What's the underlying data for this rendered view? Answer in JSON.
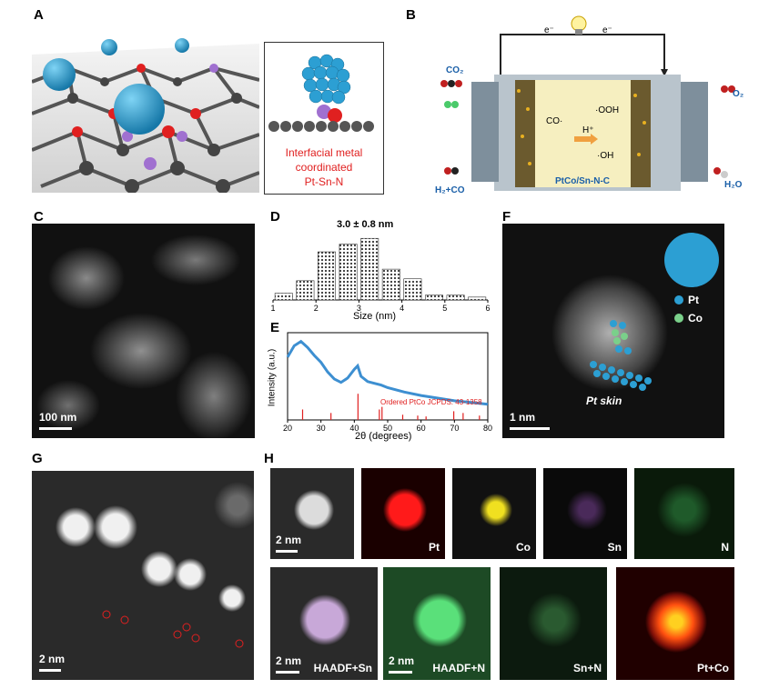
{
  "panels": {
    "A": {
      "label": "A",
      "inset_caption": [
        "Interfacial metal",
        "coordinated",
        "Pt-Sn-N"
      ]
    },
    "B": {
      "label": "B",
      "electron_left": "e⁻",
      "electron_right": "e⁻",
      "co2": "CO₂",
      "o2": "O₂",
      "co_rad": "CO·",
      "ooh": "·OOH",
      "hplus": "H⁺",
      "oh": "·OH",
      "h2co": "H₂+CO",
      "h2o": "H₂O",
      "membrane": "PtCo/Sn-N-C"
    },
    "C": {
      "label": "C",
      "scale": "100 nm"
    },
    "D": {
      "label": "D",
      "annotation": "3.0 ± 0.8 nm",
      "xlabel": "Size (nm)",
      "xticks": [
        "1",
        "2",
        "3",
        "4",
        "5",
        "6"
      ]
    },
    "E": {
      "label": "E",
      "ylabel": "Intensity (a.u.)",
      "xlabel": "2θ (degrees)",
      "legend": "Ordered PtCo JCPDS: 43-1358",
      "xticks": [
        "20",
        "30",
        "40",
        "50",
        "60",
        "70",
        "80"
      ]
    },
    "F": {
      "label": "F",
      "scale": "1 nm",
      "legend_pt": "Pt",
      "legend_co": "Co",
      "skin": "Pt skin"
    },
    "G": {
      "label": "G",
      "scale": "2 nm"
    },
    "H": {
      "label": "H",
      "scale1": "2 nm",
      "scale2": "2 nm",
      "maps": [
        "Pt",
        "Co",
        "Sn",
        "N",
        "HAADF+Sn",
        "HAADF+N",
        "Sn+N",
        "Pt+Co"
      ]
    }
  },
  "chart_data": [
    {
      "type": "bar",
      "title": "3.0 ± 0.8 nm",
      "xlabel": "Size (nm)",
      "ylabel": "",
      "x": [
        1.25,
        1.75,
        2.25,
        2.75,
        3.25,
        3.75,
        4.25,
        4.75,
        5.25,
        5.75
      ],
      "values": [
        7,
        20,
        50,
        58,
        64,
        32,
        22,
        5,
        5,
        3
      ],
      "xlim": [
        1,
        6
      ],
      "grid": false
    },
    {
      "type": "line",
      "title": "",
      "xlabel": "2θ (degrees)",
      "ylabel": "Intensity (a.u.)",
      "xlim": [
        20,
        80
      ],
      "series": [
        {
          "x": [
            20,
            22,
            24,
            26,
            28,
            30,
            32,
            34,
            36,
            38,
            40,
            41,
            42,
            44,
            46,
            48,
            50,
            55,
            60,
            65,
            70,
            75,
            80
          ],
          "values": [
            0.72,
            0.85,
            0.9,
            0.83,
            0.74,
            0.66,
            0.55,
            0.47,
            0.43,
            0.48,
            0.58,
            0.62,
            0.5,
            0.44,
            0.42,
            0.4,
            0.37,
            0.32,
            0.28,
            0.25,
            0.22,
            0.2,
            0.18
          ]
        }
      ],
      "reference_peaks": {
        "name": "Ordered PtCo JCPDS: 43-1358",
        "x": [
          24.5,
          33,
          41.1,
          47.5,
          48.3,
          54.5,
          59,
          61.5,
          69.8,
          72.6,
          77.5
        ],
        "values": [
          0.12,
          0.08,
          0.3,
          0.12,
          0.15,
          0.06,
          0.05,
          0.04,
          0.1,
          0.08,
          0.05
        ]
      }
    }
  ],
  "colors": {
    "line": "#3d8fd1",
    "reference": "#e02020",
    "pt": "#3aa0d8",
    "co": "#7ad08a",
    "sn": "#a060c0",
    "n": "#2fa84a"
  }
}
